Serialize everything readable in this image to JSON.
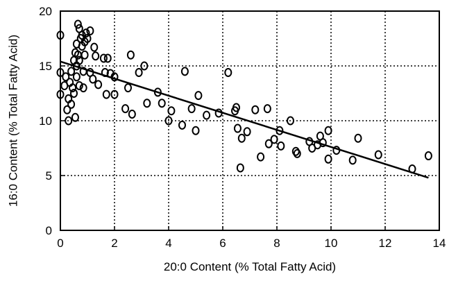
{
  "chart_data": {
    "type": "scatter",
    "x_label": "20:0 Content (% Total Fatty Acid)",
    "y_label": "16:0 Content (% Total Fatty Acid)",
    "xlim": [
      0,
      14
    ],
    "ylim": [
      0,
      20
    ],
    "xticks": [
      0,
      2,
      4,
      6,
      8,
      10,
      12,
      14
    ],
    "yticks": [
      0,
      5,
      10,
      15,
      20
    ],
    "grid": true,
    "color": "#000000",
    "x": [
      0,
      0,
      0,
      0.15,
      0.2,
      0.25,
      0.3,
      0.3,
      0.35,
      0.4,
      0.4,
      0.45,
      0.5,
      0.5,
      0.55,
      0.55,
      0.6,
      0.6,
      0.6,
      0.65,
      0.65,
      0.7,
      0.7,
      0.7,
      0.75,
      0.8,
      0.8,
      0.85,
      0.85,
      0.9,
      0.9,
      0.95,
      1.0,
      1.1,
      1.1,
      1.2,
      1.25,
      1.3,
      1.4,
      1.6,
      1.65,
      1.7,
      1.75,
      1.85,
      2.0,
      2.0,
      2.4,
      2.5,
      2.6,
      2.65,
      2.9,
      3.1,
      3.2,
      3.6,
      3.75,
      4.0,
      4.1,
      4.5,
      4.6,
      4.85,
      5.0,
      5.1,
      5.4,
      5.85,
      6.2,
      6.45,
      6.5,
      6.55,
      6.65,
      6.7,
      6.9,
      7.2,
      7.4,
      7.65,
      7.7,
      7.9,
      8.1,
      8.15,
      8.5,
      8.7,
      8.75,
      9.2,
      9.3,
      9.5,
      9.6,
      9.7,
      9.9,
      9.9,
      10.2,
      10.8,
      11.0,
      11.75,
      13.0,
      13.6
    ],
    "values": [
      17.8,
      14.4,
      12.4,
      13.2,
      14.0,
      11.0,
      10.0,
      12.0,
      13.5,
      14.5,
      11.5,
      13.0,
      15.5,
      12.5,
      16.2,
      10.3,
      17.0,
      14.0,
      15.0,
      18.8,
      16.0,
      18.4,
      15.5,
      13.2,
      17.5,
      17.8,
      16.8,
      14.5,
      13.0,
      17.2,
      16.0,
      18.0,
      17.5,
      14.4,
      18.2,
      13.8,
      16.7,
      15.9,
      13.3,
      15.7,
      14.4,
      12.4,
      15.7,
      14.3,
      14.0,
      12.4,
      11.1,
      13.0,
      16.0,
      10.6,
      14.4,
      15.0,
      11.6,
      12.6,
      11.6,
      10.0,
      10.9,
      9.6,
      14.5,
      11.1,
      9.1,
      12.3,
      10.5,
      10.7,
      14.4,
      10.9,
      11.2,
      9.3,
      5.7,
      8.4,
      9.0,
      11.0,
      6.7,
      11.1,
      7.9,
      8.3,
      9.1,
      7.7,
      10.0,
      7.2,
      7.0,
      8.1,
      7.5,
      7.8,
      8.6,
      8.0,
      9.1,
      6.5,
      7.3,
      6.4,
      8.4,
      6.9,
      5.6,
      6.8
    ],
    "fit_line": {
      "x": [
        0,
        13.6
      ],
      "values": [
        15.4,
        4.8
      ]
    }
  }
}
